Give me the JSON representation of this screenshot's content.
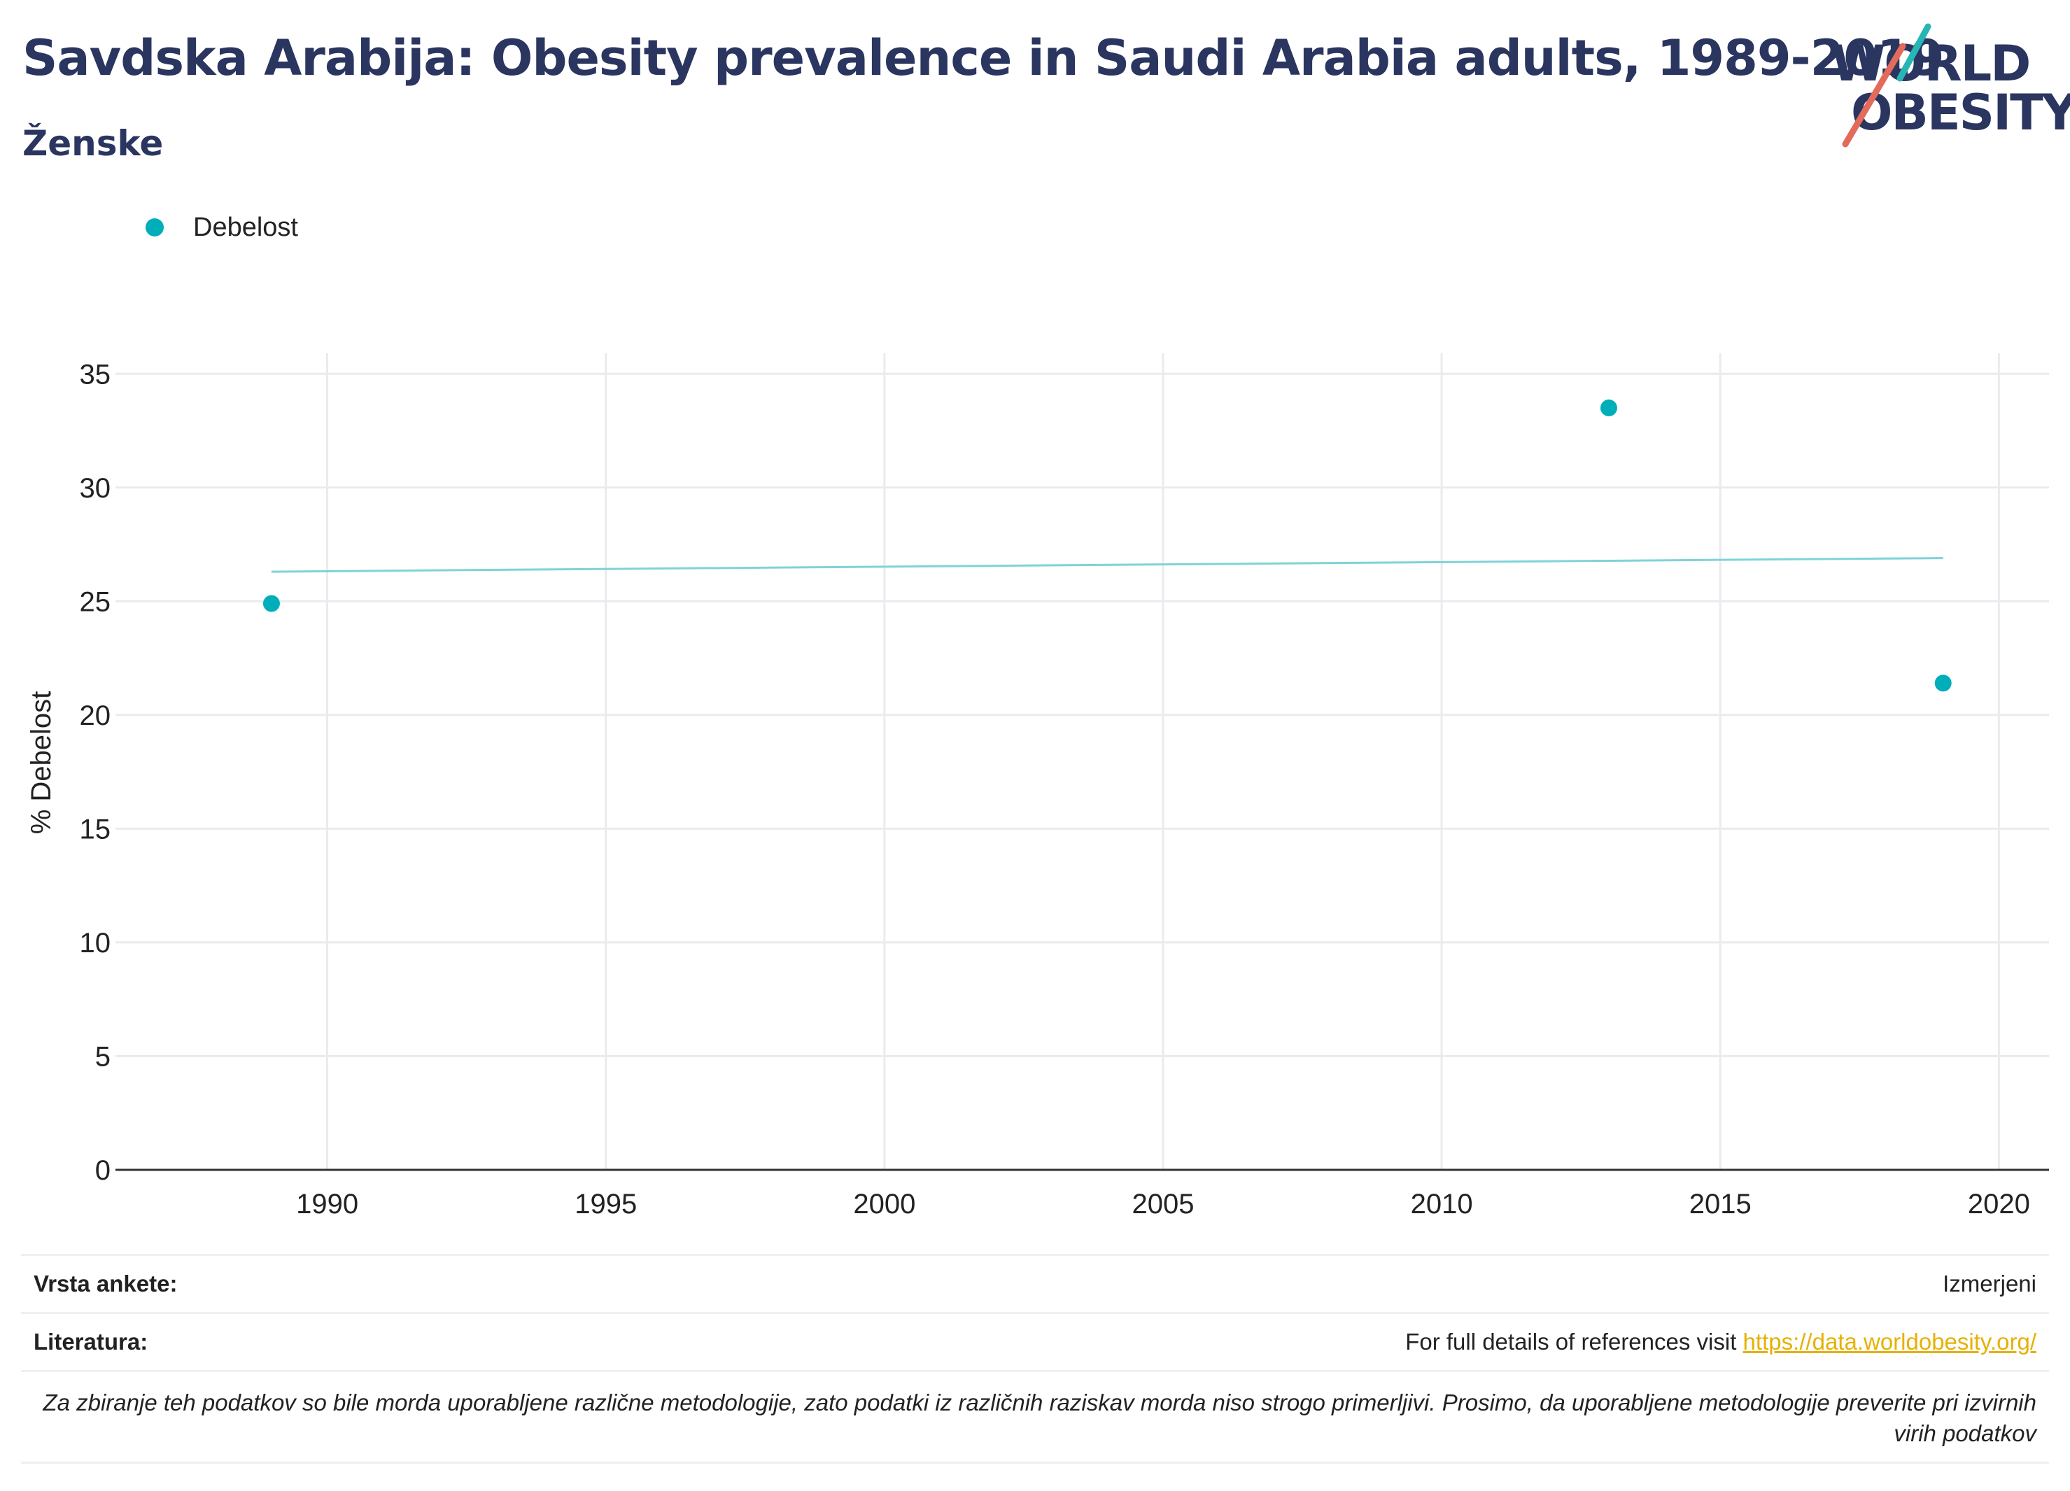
{
  "header": {
    "title": "Savdska Arabija: Obesity prevalence in Saudi Arabia adults, 1989-2019",
    "subtitle": "Ženske"
  },
  "logo": {
    "line1": "WORLD",
    "line2": "OBESITY",
    "accent1": "#27b5b5",
    "accent2": "#e26b5c"
  },
  "chart_data": {
    "type": "scatter",
    "series": [
      {
        "name": "Debelost",
        "color": "#00aeba",
        "points": [
          {
            "x": 1989,
            "y": 24.9
          },
          {
            "x": 2013,
            "y": 33.5
          },
          {
            "x": 2019,
            "y": 21.4
          }
        ]
      }
    ],
    "trendline": {
      "color": "#7fd3d7",
      "points": [
        {
          "x": 1989,
          "y": 26.3
        },
        {
          "x": 2019,
          "y": 26.9
        }
      ]
    },
    "ylabel": "% Debelost",
    "xlim": [
      1986.2,
      2020.9
    ],
    "ylim": [
      0,
      35.9
    ],
    "x_ticks": [
      1990,
      1995,
      2000,
      2005,
      2010,
      2015,
      2020
    ],
    "y_ticks": [
      0,
      5,
      10,
      15,
      20,
      25,
      30,
      35
    ],
    "grid": true,
    "legend_position": "top-left"
  },
  "footer": {
    "survey_label": "Vrsta ankete:",
    "survey_value": "Izmerjeni",
    "references_label": "Literatura:",
    "references_text": "For full details of references visit ",
    "references_link": "https://data.worldobesity.org/",
    "note": "Za zbiranje teh podatkov so bile morda uporabljene različne metodologije, zato podatki iz različnih raziskav morda niso strogo primerljivi. Prosimo, da uporabljene metodologije preverite pri izvirnih virih podatkov"
  }
}
